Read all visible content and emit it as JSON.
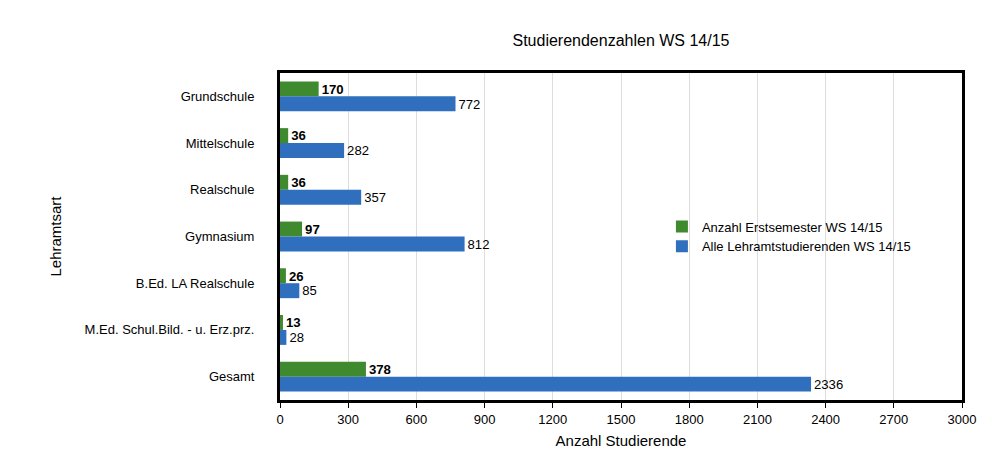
{
  "chart_data": {
    "type": "bar",
    "orientation": "horizontal",
    "title": "Studierendenzahlen WS 14/15",
    "x_label": "Anzahl Studierende",
    "y_label": "Lehramtsart",
    "categories": [
      "Grundschule",
      "Mittelschule",
      "Realschule",
      "Gymnasium",
      "B.Ed. LA Realschule",
      "M.Ed. Schul.Bild. - u. Erz.prz.",
      "Gesamt"
    ],
    "series": [
      {
        "name": "Anzahl Erstsemester WS 14/15",
        "color": "#3f8a2f",
        "values": [
          170,
          36,
          36,
          97,
          26,
          13,
          378
        ]
      },
      {
        "name": "Alle Lehramtstudierenden WS 14/15",
        "color": "#2f6fbe",
        "values": [
          772,
          282,
          357,
          812,
          85,
          28,
          2336
        ]
      }
    ],
    "xlim": [
      0,
      3000
    ],
    "xticks": [
      0,
      300,
      600,
      900,
      1200,
      1500,
      1800,
      2100,
      2400,
      2700,
      3000
    ],
    "grid": true,
    "legend": "right",
    "data_labels": true
  }
}
